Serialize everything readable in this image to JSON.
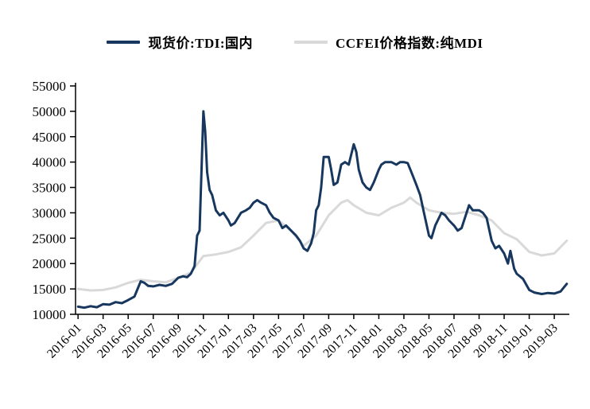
{
  "legend": {
    "items": [
      {
        "label": "现货价:TDI:国内",
        "color": "#17375e"
      },
      {
        "label": "CCFEI价格指数:纯MDI",
        "color": "#d9d9d9"
      }
    ]
  },
  "chart_data": {
    "type": "line",
    "title": "",
    "xlabel": "",
    "ylabel": "",
    "x_unit": "months since 2016-01",
    "xlim": [
      -0.2,
      39.2
    ],
    "ylim": [
      10000,
      55000
    ],
    "y_ticks": [
      10000,
      15000,
      20000,
      25000,
      30000,
      35000,
      40000,
      45000,
      50000,
      55000
    ],
    "x_ticks": [
      {
        "x": 0,
        "label": "2016-01"
      },
      {
        "x": 2,
        "label": "2016-03"
      },
      {
        "x": 4,
        "label": "2016-05"
      },
      {
        "x": 6,
        "label": "2016-07"
      },
      {
        "x": 8,
        "label": "2016-09"
      },
      {
        "x": 10,
        "label": "2016-11"
      },
      {
        "x": 12,
        "label": "2017-01"
      },
      {
        "x": 14,
        "label": "2017-03"
      },
      {
        "x": 16,
        "label": "2017-05"
      },
      {
        "x": 18,
        "label": "2017-07"
      },
      {
        "x": 20,
        "label": "2017-09"
      },
      {
        "x": 22,
        "label": "2017-11"
      },
      {
        "x": 24,
        "label": "2018-01"
      },
      {
        "x": 26,
        "label": "2018-03"
      },
      {
        "x": 28,
        "label": "2018-05"
      },
      {
        "x": 30,
        "label": "2018-07"
      },
      {
        "x": 32,
        "label": "2018-09"
      },
      {
        "x": 34,
        "label": "2018-11"
      },
      {
        "x": 36,
        "label": "2019-01"
      },
      {
        "x": 38,
        "label": "2019-03"
      }
    ],
    "grid": false,
    "legend_position": "top-center",
    "series": [
      {
        "name": "现货价:TDI:国内",
        "color": "#17375e",
        "stroke_width": 3,
        "points": [
          [
            0,
            11500
          ],
          [
            0.5,
            11300
          ],
          [
            1,
            11600
          ],
          [
            1.5,
            11400
          ],
          [
            2,
            12000
          ],
          [
            2.5,
            11900
          ],
          [
            3,
            12400
          ],
          [
            3.5,
            12200
          ],
          [
            4,
            12800
          ],
          [
            4.5,
            13500
          ],
          [
            5,
            16500
          ],
          [
            5.3,
            16200
          ],
          [
            5.6,
            15600
          ],
          [
            6,
            15500
          ],
          [
            6.5,
            15800
          ],
          [
            7,
            15600
          ],
          [
            7.5,
            16000
          ],
          [
            8,
            17200
          ],
          [
            8.4,
            17500
          ],
          [
            8.7,
            17300
          ],
          [
            9,
            18000
          ],
          [
            9.3,
            19500
          ],
          [
            9.5,
            25500
          ],
          [
            9.7,
            26500
          ],
          [
            10,
            50000
          ],
          [
            10.15,
            46000
          ],
          [
            10.3,
            38000
          ],
          [
            10.5,
            34500
          ],
          [
            10.7,
            33500
          ],
          [
            11,
            30500
          ],
          [
            11.3,
            29500
          ],
          [
            11.6,
            30000
          ],
          [
            12,
            28500
          ],
          [
            12.2,
            27500
          ],
          [
            12.5,
            28000
          ],
          [
            13,
            30000
          ],
          [
            13.4,
            30500
          ],
          [
            13.7,
            31000
          ],
          [
            14,
            32000
          ],
          [
            14.3,
            32500
          ],
          [
            14.6,
            32000
          ],
          [
            15,
            31500
          ],
          [
            15.3,
            30000
          ],
          [
            15.6,
            29000
          ],
          [
            16,
            28500
          ],
          [
            16.3,
            27000
          ],
          [
            16.6,
            27500
          ],
          [
            17,
            26500
          ],
          [
            17.4,
            25500
          ],
          [
            17.7,
            24500
          ],
          [
            18,
            23000
          ],
          [
            18.3,
            22500
          ],
          [
            18.6,
            24000
          ],
          [
            18.8,
            26000
          ],
          [
            19,
            30500
          ],
          [
            19.2,
            31500
          ],
          [
            19.4,
            35000
          ],
          [
            19.6,
            41000
          ],
          [
            20,
            41000
          ],
          [
            20.2,
            38500
          ],
          [
            20.4,
            35500
          ],
          [
            20.7,
            36000
          ],
          [
            21,
            39500
          ],
          [
            21.3,
            40000
          ],
          [
            21.6,
            39500
          ],
          [
            22,
            43500
          ],
          [
            22.2,
            42000
          ],
          [
            22.4,
            38500
          ],
          [
            22.7,
            36000
          ],
          [
            23,
            35000
          ],
          [
            23.3,
            34500
          ],
          [
            23.6,
            36000
          ],
          [
            24,
            38500
          ],
          [
            24.2,
            39500
          ],
          [
            24.5,
            40000
          ],
          [
            25,
            40000
          ],
          [
            25.4,
            39500
          ],
          [
            25.7,
            40000
          ],
          [
            26,
            40000
          ],
          [
            26.3,
            39800
          ],
          [
            26.6,
            38000
          ],
          [
            27,
            35500
          ],
          [
            27.3,
            33500
          ],
          [
            27.6,
            30000
          ],
          [
            28,
            25500
          ],
          [
            28.2,
            25000
          ],
          [
            28.5,
            27500
          ],
          [
            29,
            30000
          ],
          [
            29.3,
            29500
          ],
          [
            29.6,
            28500
          ],
          [
            30,
            27500
          ],
          [
            30.3,
            26500
          ],
          [
            30.6,
            27000
          ],
          [
            31,
            30000
          ],
          [
            31.2,
            31500
          ],
          [
            31.5,
            30500
          ],
          [
            32,
            30500
          ],
          [
            32.3,
            30000
          ],
          [
            32.6,
            29000
          ],
          [
            33,
            24500
          ],
          [
            33.3,
            23000
          ],
          [
            33.6,
            23500
          ],
          [
            34,
            22000
          ],
          [
            34.3,
            20000
          ],
          [
            34.5,
            22500
          ],
          [
            34.8,
            19000
          ],
          [
            35,
            18000
          ],
          [
            35.5,
            17000
          ],
          [
            36,
            14800
          ],
          [
            36.4,
            14300
          ],
          [
            37,
            14000
          ],
          [
            37.5,
            14200
          ],
          [
            38,
            14100
          ],
          [
            38.5,
            14500
          ],
          [
            39,
            16000
          ]
        ]
      },
      {
        "name": "CCFEI价格指数:纯MDI",
        "color": "#d9d9d9",
        "stroke_width": 3,
        "points": [
          [
            0,
            15000
          ],
          [
            1,
            14700
          ],
          [
            2,
            14800
          ],
          [
            3,
            15300
          ],
          [
            4,
            16200
          ],
          [
            5,
            16800
          ],
          [
            6,
            16500
          ],
          [
            7,
            16300
          ],
          [
            8,
            17200
          ],
          [
            9,
            18200
          ],
          [
            10,
            21500
          ],
          [
            11,
            21800
          ],
          [
            12,
            22300
          ],
          [
            13,
            23200
          ],
          [
            14,
            25500
          ],
          [
            15,
            28000
          ],
          [
            16,
            28500
          ],
          [
            17,
            26500
          ],
          [
            18,
            23500
          ],
          [
            19,
            25500
          ],
          [
            20,
            29500
          ],
          [
            21,
            32000
          ],
          [
            21.5,
            32500
          ],
          [
            22,
            31500
          ],
          [
            23,
            30000
          ],
          [
            24,
            29500
          ],
          [
            25,
            31000
          ],
          [
            26,
            32000
          ],
          [
            26.5,
            33000
          ],
          [
            27,
            32000
          ],
          [
            28,
            30500
          ],
          [
            29,
            30000
          ],
          [
            30,
            29800
          ],
          [
            31,
            30200
          ],
          [
            32,
            29500
          ],
          [
            33,
            28500
          ],
          [
            34,
            26000
          ],
          [
            35,
            24800
          ],
          [
            36,
            22300
          ],
          [
            37,
            21600
          ],
          [
            38,
            22000
          ],
          [
            39,
            24500
          ]
        ]
      }
    ]
  }
}
